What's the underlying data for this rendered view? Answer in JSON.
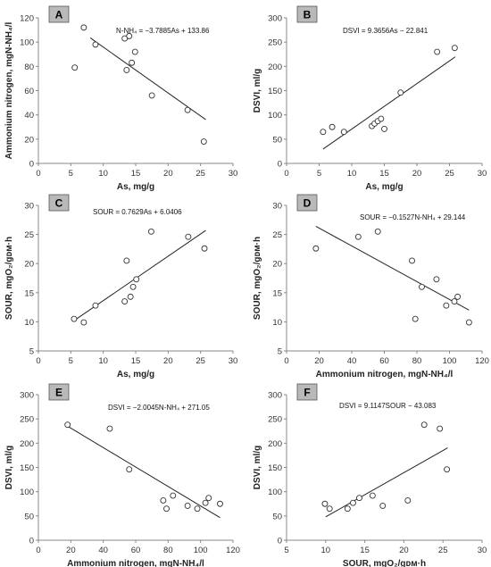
{
  "chart_data": [
    {
      "type": "scatter",
      "panel": "A",
      "equation": "N-NH₄ = −3.7885As + 133.86",
      "xlabel": "As, mg/g",
      "ylabel": "Ammonium nitrogen, mgN-NH₄/l",
      "xlim": [
        0,
        30
      ],
      "ylim": [
        0,
        120
      ],
      "xticks": [
        0,
        5,
        10,
        15,
        20,
        25,
        30
      ],
      "yticks": [
        0,
        20,
        40,
        60,
        80,
        100,
        120
      ],
      "x": [
        5.6,
        7.0,
        8.8,
        13.3,
        13.6,
        14.0,
        14.4,
        14.9,
        17.5,
        23.0,
        25.5
      ],
      "y": [
        79,
        112,
        98,
        103,
        77,
        105,
        83,
        92,
        56,
        44,
        18
      ],
      "trendline": {
        "x": [
          8,
          25.8
        ],
        "y": [
          103.5,
          36.1
        ]
      }
    },
    {
      "type": "scatter",
      "panel": "B",
      "equation": "DSVI = 9.3656As − 22.841",
      "xlabel": "As, mg/g",
      "ylabel": "DSVI, ml/g",
      "xlim": [
        0,
        30
      ],
      "ylim": [
        0,
        300
      ],
      "xticks": [
        0,
        5,
        10,
        15,
        20,
        25,
        30
      ],
      "yticks": [
        0,
        50,
        100,
        150,
        200,
        250,
        300
      ],
      "x": [
        5.6,
        7.0,
        8.8,
        13.1,
        13.5,
        14.0,
        14.5,
        15.0,
        17.5,
        23.1,
        25.8
      ],
      "y": [
        65,
        75,
        65,
        77,
        82,
        87,
        92,
        71,
        146,
        230,
        238
      ],
      "trendline": {
        "x": [
          5.6,
          25.9
        ],
        "y": [
          29.6,
          219.7
        ]
      }
    },
    {
      "type": "scatter",
      "panel": "C",
      "equation": "SOUR = 0.7629As + 6.0406",
      "xlabel": "As, mg/g",
      "ylabel": "SOUR, mgO₂/gᴅᴍ·h",
      "xlim": [
        0,
        30
      ],
      "ylim": [
        5,
        30
      ],
      "xticks": [
        0,
        5,
        10,
        15,
        20,
        25,
        30
      ],
      "yticks": [
        5,
        10,
        15,
        20,
        25,
        30
      ],
      "x": [
        5.5,
        7.0,
        8.8,
        13.3,
        13.6,
        14.2,
        14.6,
        15.1,
        17.4,
        23.1,
        25.6
      ],
      "y": [
        10.5,
        9.9,
        12.8,
        13.5,
        20.5,
        14.3,
        16.0,
        17.3,
        25.5,
        24.6,
        22.6
      ],
      "trendline": {
        "x": [
          5.5,
          25.8
        ],
        "y": [
          10.2,
          25.7
        ]
      }
    },
    {
      "type": "scatter",
      "panel": "D",
      "equation": "SOUR = −0.1527N-NH₄ + 29.144",
      "xlabel": "Ammonium nitrogen, mgN-NH₄/l",
      "ylabel": "SOUR, mgO₂/gᴅᴍ·h",
      "xlim": [
        0,
        120
      ],
      "ylim": [
        5,
        30
      ],
      "xticks": [
        0,
        20,
        40,
        60,
        80,
        100,
        120
      ],
      "yticks": [
        5,
        10,
        15,
        20,
        25,
        30
      ],
      "x": [
        18,
        44,
        56,
        77,
        79,
        83,
        92,
        98,
        103,
        105,
        112
      ],
      "y": [
        22.6,
        24.6,
        25.5,
        20.5,
        10.5,
        16.0,
        17.3,
        12.8,
        13.5,
        14.3,
        9.9
      ],
      "trendline": {
        "x": [
          18,
          112
        ],
        "y": [
          26.4,
          12.0
        ]
      }
    },
    {
      "type": "scatter",
      "panel": "E",
      "equation": "DSVI = −2.0045N-NH₄ + 271.05",
      "xlabel": "Ammonium nitrogen, mgN-NH₄/l",
      "ylabel": "DSVI, ml/g",
      "xlim": [
        0,
        120
      ],
      "ylim": [
        0,
        300
      ],
      "xticks": [
        0,
        20,
        40,
        60,
        80,
        100,
        120
      ],
      "yticks": [
        0,
        50,
        100,
        150,
        200,
        250,
        300
      ],
      "x": [
        18,
        44,
        56,
        77,
        79,
        83,
        92,
        98,
        103,
        105,
        112
      ],
      "y": [
        238,
        230,
        146,
        82,
        65,
        92,
        71,
        65,
        77,
        87,
        75
      ],
      "trendline": {
        "x": [
          18,
          112
        ],
        "y": [
          235,
          46.5
        ]
      }
    },
    {
      "type": "scatter",
      "panel": "F",
      "equation": "DSVI = 9.1147SOUR − 43.083",
      "xlabel": "SOUR, mgO₂/gᴅᴍ·h",
      "ylabel": "DSVI, ml/g",
      "xlim": [
        5,
        30
      ],
      "ylim": [
        0,
        300
      ],
      "xticks": [
        5,
        10,
        15,
        20,
        25,
        30
      ],
      "yticks": [
        0,
        50,
        100,
        150,
        200,
        250,
        300
      ],
      "x": [
        9.9,
        10.5,
        12.8,
        13.5,
        14.3,
        16.0,
        17.3,
        20.5,
        22.6,
        24.6,
        25.5
      ],
      "y": [
        75,
        65,
        65,
        77,
        87,
        92,
        71,
        82,
        238,
        230,
        146
      ],
      "trendline": {
        "x": [
          10.0,
          25.6
        ],
        "y": [
          48.1,
          190.3
        ]
      }
    }
  ]
}
